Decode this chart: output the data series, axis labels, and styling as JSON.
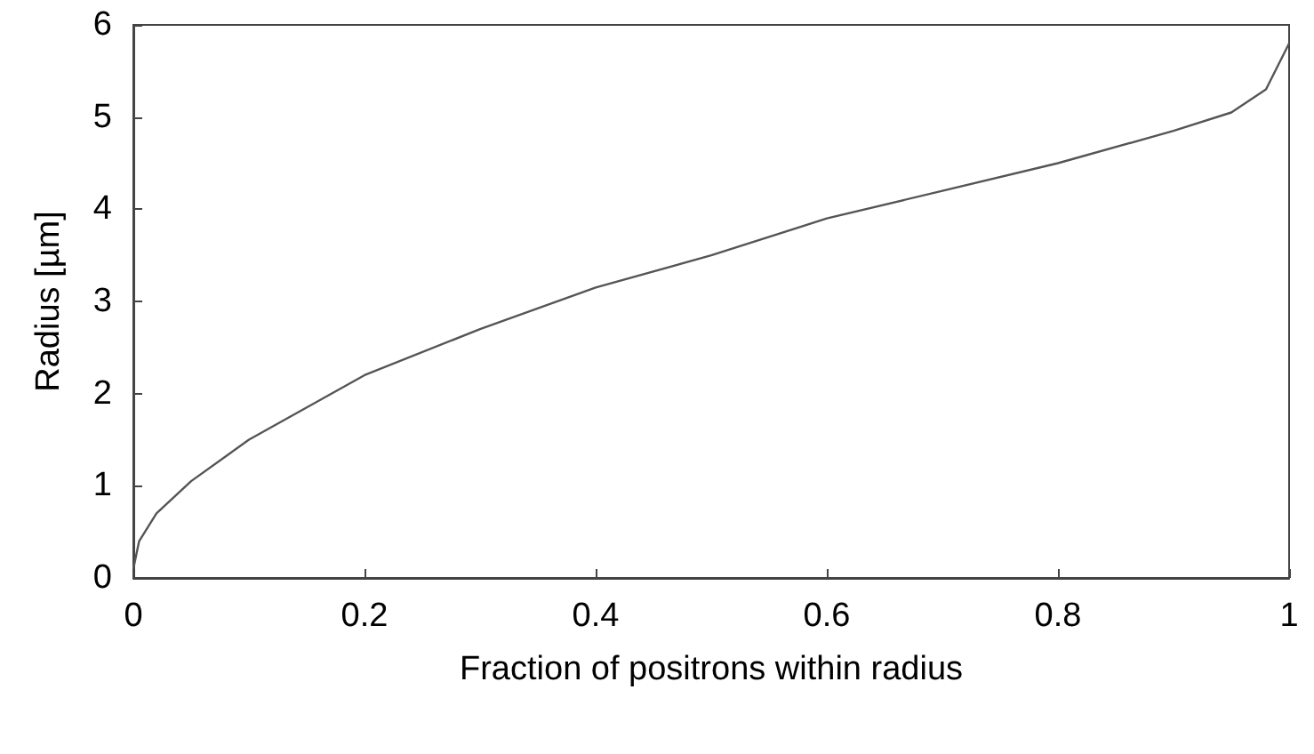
{
  "chart_data": {
    "type": "line",
    "xlabel": "Fraction of positrons within radius",
    "ylabel": "Radius [µm]",
    "x": [
      0,
      0.005,
      0.02,
      0.05,
      0.1,
      0.15,
      0.2,
      0.3,
      0.4,
      0.5,
      0.6,
      0.7,
      0.8,
      0.9,
      0.95,
      0.98,
      1
    ],
    "series": [
      {
        "color": "#555555",
        "values": [
          0.1,
          0.4,
          0.7,
          1.05,
          1.5,
          1.85,
          2.2,
          2.7,
          3.15,
          3.5,
          3.9,
          4.2,
          4.5,
          4.85,
          5.05,
          5.3,
          5.8
        ]
      }
    ],
    "xlim": [
      0,
      1
    ],
    "xticks": [
      0,
      0.2,
      0.4,
      0.6,
      0.8,
      1
    ],
    "ylim": [
      0,
      6
    ],
    "yticks": [
      0,
      1,
      2,
      3,
      4,
      5,
      6
    ],
    "grid": false,
    "marker": "none",
    "line_style": "solid"
  }
}
